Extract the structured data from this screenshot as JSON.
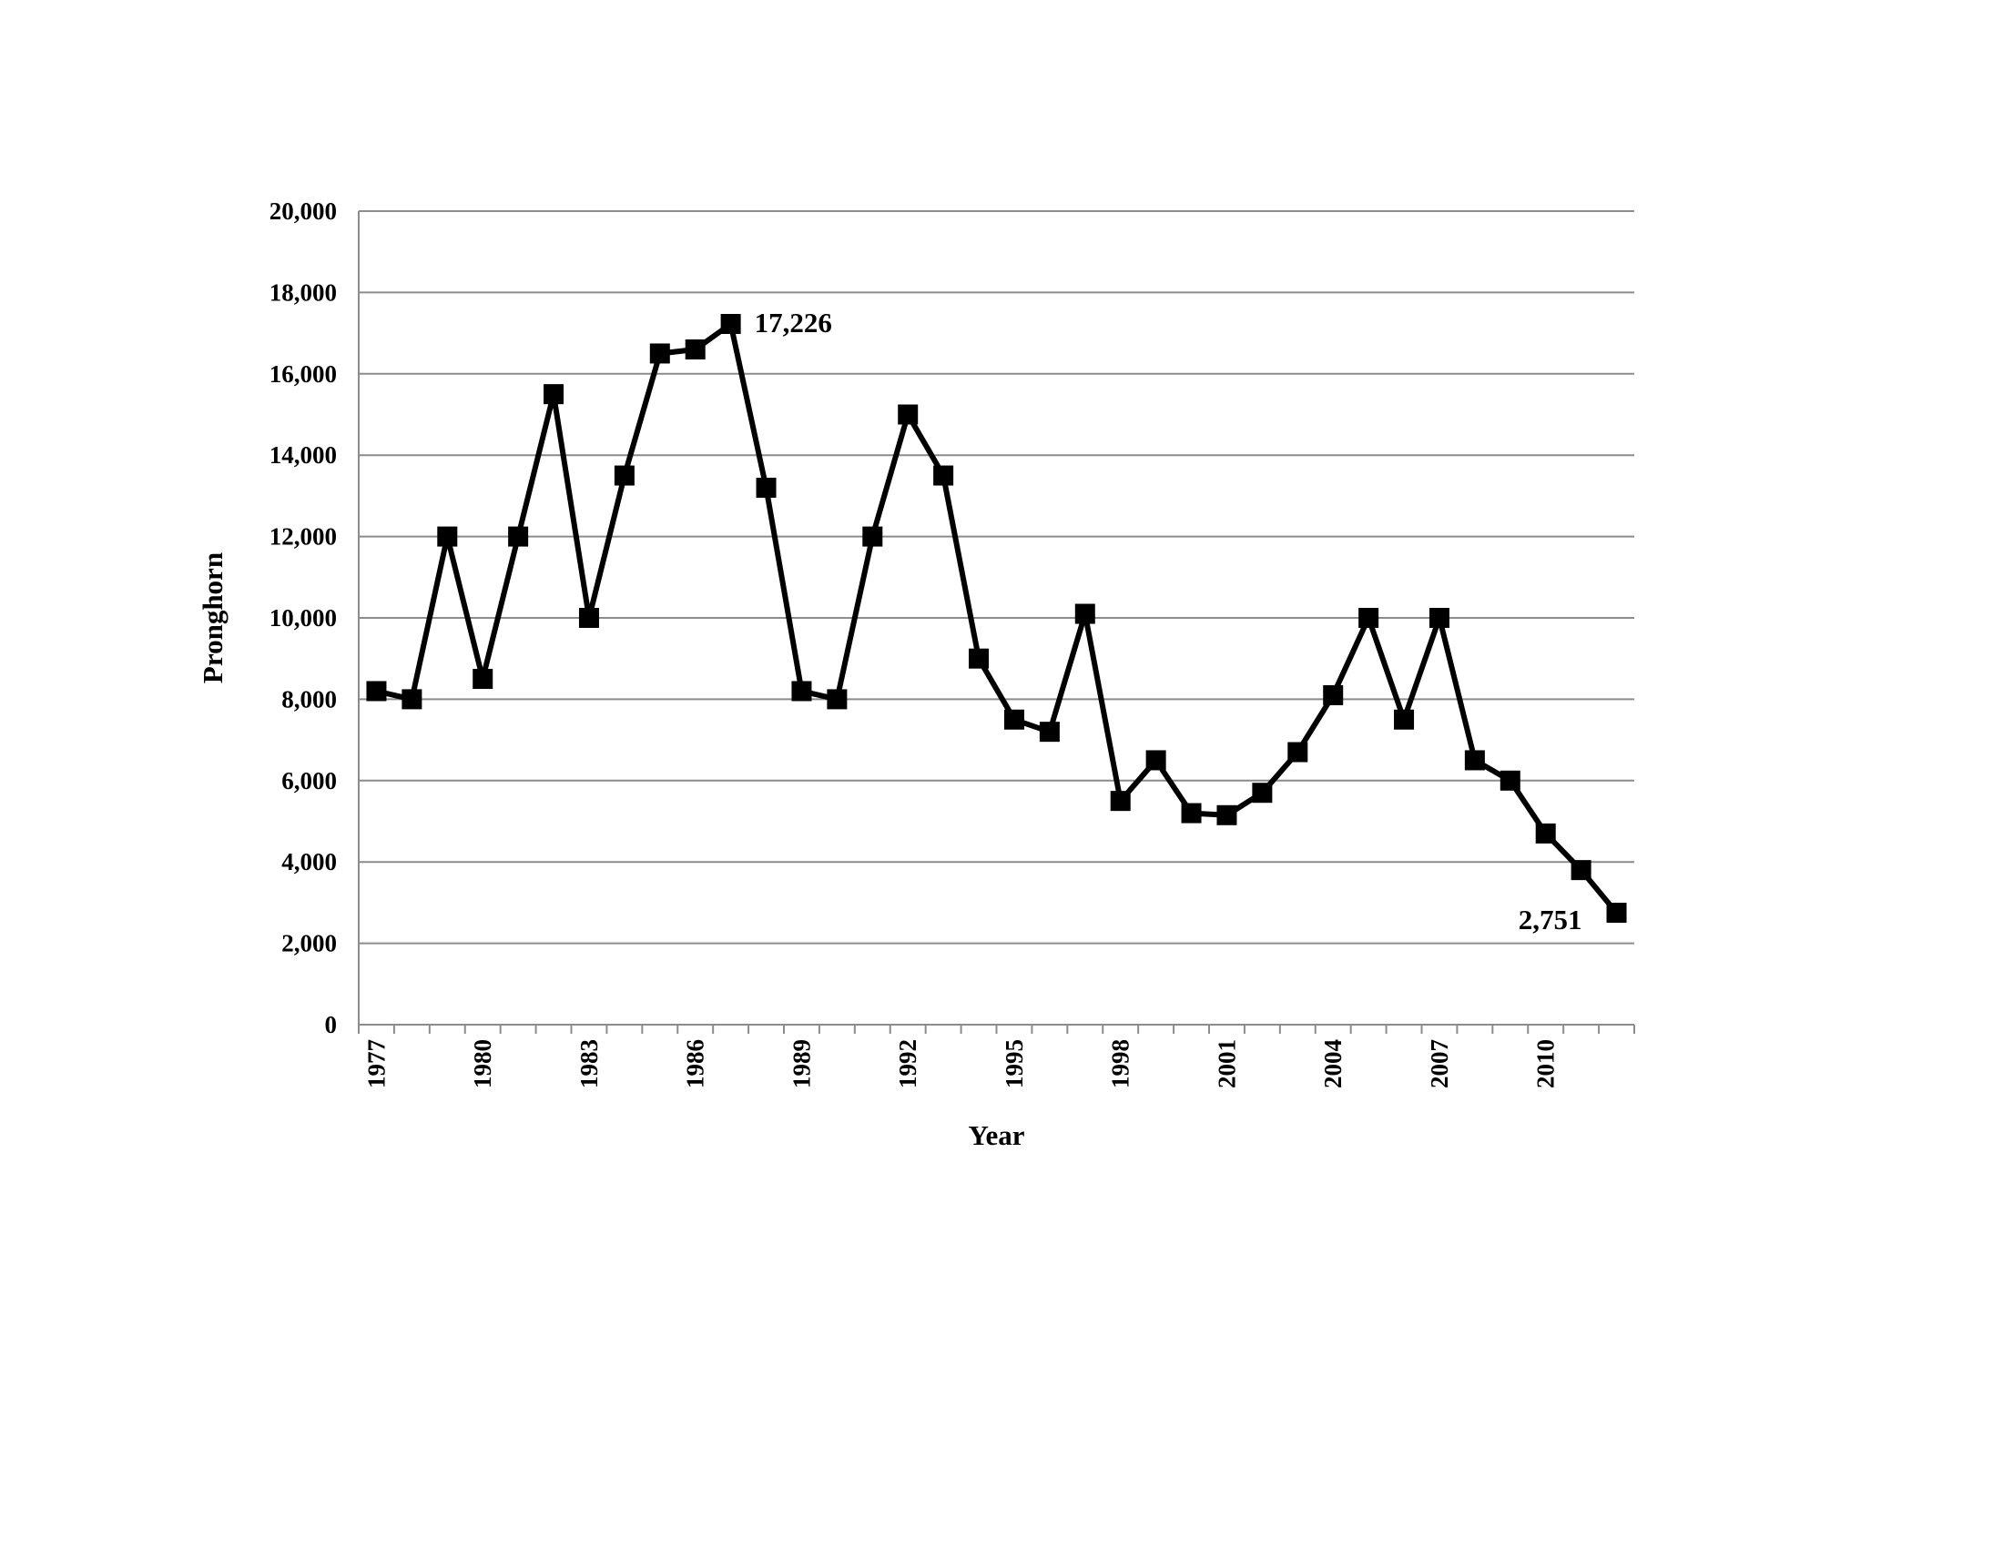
{
  "chart_data": {
    "type": "line",
    "title": "",
    "xlabel": "Year",
    "ylabel": "Pronghorn",
    "ylim": [
      0,
      20000
    ],
    "yticks": [
      "0",
      "2,000",
      "4,000",
      "6,000",
      "8,000",
      "10,000",
      "12,000",
      "14,000",
      "16,000",
      "18,000",
      "20,000"
    ],
    "xtick_labels": [
      "1977",
      "1980",
      "1983",
      "1986",
      "1989",
      "1992",
      "1995",
      "1998",
      "2001",
      "2004",
      "2007",
      "2010"
    ],
    "grid": "horizontal",
    "legend": "none",
    "line_color": "#000000",
    "marker": "square",
    "x": [
      1977,
      1978,
      1979,
      1980,
      1981,
      1982,
      1983,
      1984,
      1985,
      1986,
      1987,
      1988,
      1989,
      1990,
      1991,
      1992,
      1993,
      1994,
      1995,
      1996,
      1997,
      1998,
      1999,
      2000,
      2001,
      2002,
      2003,
      2004,
      2005,
      2006,
      2007,
      2008,
      2009,
      2010,
      2011,
      2012
    ],
    "series": [
      {
        "values": [
          8200,
          8000,
          12000,
          8500,
          12000,
          15500,
          10000,
          13500,
          16500,
          16600,
          17226,
          13200,
          8200,
          8000,
          12000,
          15000,
          13500,
          9000,
          7500,
          7200,
          10100,
          5500,
          6500,
          5200,
          5150,
          5700,
          6700,
          8100,
          10000,
          7500,
          10000,
          6500,
          6000,
          4700,
          3800,
          2751
        ]
      }
    ],
    "annotations": [
      {
        "text": "17,226",
        "x": 1987,
        "y": 17226
      },
      {
        "text": "2,751",
        "x": 2012,
        "y": 2751
      }
    ]
  }
}
